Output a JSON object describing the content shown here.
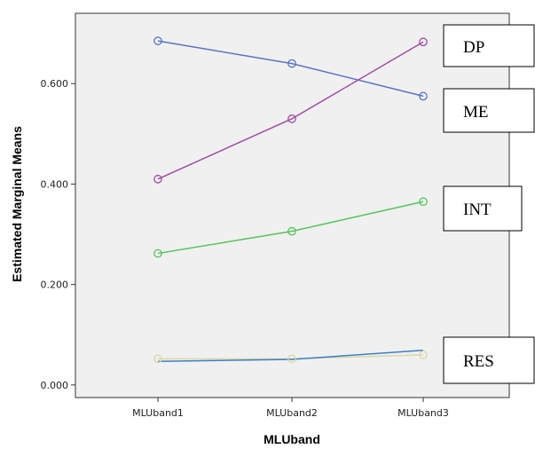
{
  "chart_data": {
    "type": "line",
    "title": "",
    "xlabel": "MLUband",
    "ylabel": "Estimated Marginal Means",
    "categories": [
      "MLUband1",
      "MLUband2",
      "MLUband3"
    ],
    "ylim": [
      -0.025,
      0.74
    ],
    "yticks": [
      0.0,
      0.2,
      0.4,
      0.6
    ],
    "ytick_labels": [
      "0.000",
      "0.200",
      "0.400",
      "0.600"
    ],
    "grid": false,
    "plot_background": "#f0f0f0",
    "series": [
      {
        "values": [
          0.685,
          0.64,
          0.575
        ],
        "color": "#5b73c4"
      },
      {
        "values": [
          0.41,
          0.53,
          0.683
        ],
        "color": "#a04ca6"
      },
      {
        "values": [
          0.262,
          0.306,
          0.365
        ],
        "color": "#54c45a"
      },
      {
        "values": [
          0.052,
          0.052,
          0.06
        ],
        "color": "#d9d9a6"
      },
      {
        "values": [
          0.047,
          0.051,
          0.069
        ],
        "color": "#3b7fc7"
      }
    ],
    "annotations": [
      "DP",
      "ME",
      "INT",
      "RES"
    ]
  }
}
